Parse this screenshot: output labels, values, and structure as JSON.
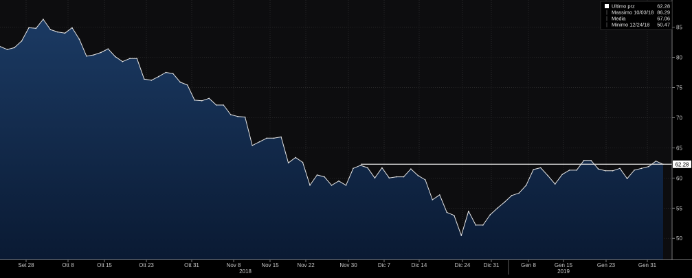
{
  "chart_data": {
    "type": "area",
    "title": "",
    "xlabel": "",
    "ylabel": "",
    "x_ticks": [
      "Set 28",
      "Ott 8",
      "Ott 15",
      "Ott 23",
      "Ott 31",
      "Nov 8",
      "Nov 15",
      "Nov 22",
      "Nov 30",
      "Dic 7",
      "Dic 14",
      "Dic 24",
      "Dic 31",
      "Gen 8",
      "Gen 15",
      "Gen 23",
      "Gen 31"
    ],
    "year_labels": [
      "2018",
      "2019"
    ],
    "y_ticks": [
      50,
      55,
      60,
      65,
      70,
      75,
      80,
      85
    ],
    "ylim": [
      46.5,
      89.5
    ],
    "grid": true,
    "legend_position": "top-right",
    "last_value_label": "62.28",
    "legend": [
      {
        "label": "Ultimo prz",
        "value": "62.28"
      },
      {
        "label": "Massimo 10/03/18",
        "value": "86.29"
      },
      {
        "label": "Media",
        "value": "67.06"
      },
      {
        "label": "Minimo 12/24/18",
        "value": "50.47"
      }
    ],
    "series": [
      {
        "name": "Ultimo prz",
        "values": [
          81.8,
          81.3,
          81.6,
          82.7,
          84.9,
          84.8,
          86.3,
          84.6,
          84.2,
          84.0,
          84.9,
          83.0,
          80.2,
          80.4,
          80.8,
          81.4,
          80.1,
          79.3,
          79.8,
          79.8,
          76.4,
          76.2,
          76.8,
          77.5,
          77.3,
          75.9,
          75.4,
          72.9,
          72.8,
          73.2,
          72.1,
          72.1,
          70.5,
          70.2,
          70.1,
          65.4,
          66.0,
          66.6,
          66.6,
          66.8,
          62.5,
          63.4,
          62.6,
          58.8,
          60.5,
          60.2,
          58.8,
          59.5,
          58.8,
          61.6,
          62.1,
          61.7,
          60.0,
          61.7,
          60.0,
          60.2,
          60.2,
          61.5,
          60.4,
          59.7,
          56.4,
          57.2,
          54.3,
          53.8,
          50.47,
          54.5,
          52.2,
          52.2,
          53.9,
          55.0,
          56.0,
          57.1,
          57.5,
          58.8,
          61.4,
          61.7,
          60.4,
          59.0,
          60.6,
          61.3,
          61.3,
          62.9,
          62.9,
          61.5,
          61.2,
          61.2,
          61.6,
          59.9,
          61.3,
          61.6,
          61.9,
          62.8,
          62.28
        ]
      }
    ],
    "colors": {
      "background": "#000000",
      "plot_background": "#0d0d0f",
      "area_top": "#1b3a63",
      "area_bottom": "#0a1a33",
      "line": "#e6e6e6",
      "grid": "#3a3a3a"
    }
  }
}
